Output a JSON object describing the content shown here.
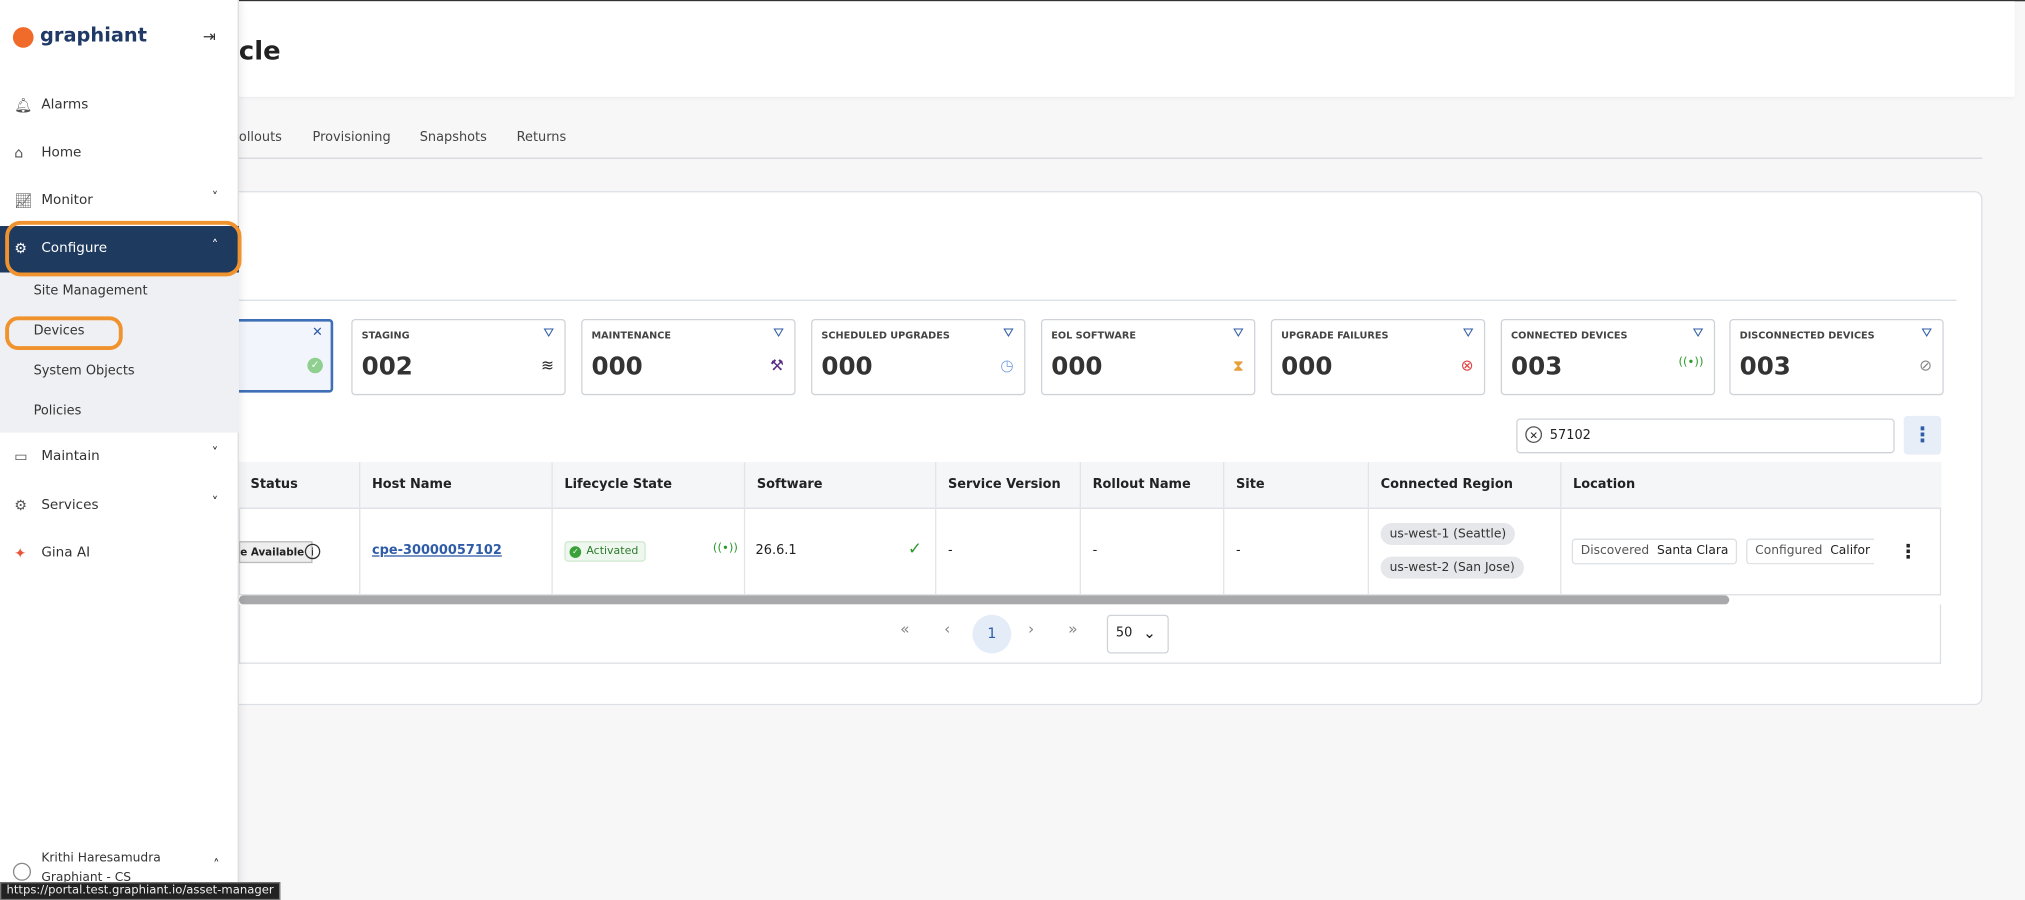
{
  "sidebar": {
    "logo": "graphiant",
    "nav": [
      "Alarms",
      "Home",
      "Monitor",
      "Configure"
    ],
    "configure_items": [
      "Site Management",
      "Devices",
      "System Objects",
      "Policies"
    ],
    "nav_more": [
      "Maintain",
      "Services",
      "Gina AI"
    ],
    "user": {
      "name": "Krithi Haresamudra",
      "org": "Graphiant - CS"
    }
  },
  "header": {
    "title": "cle"
  },
  "tabs": [
    "ollouts",
    "Provisioning",
    "Snapshots",
    "Returns"
  ],
  "cards": [
    {
      "label": "STAGING",
      "count": "002"
    },
    {
      "label": "MAINTENANCE",
      "count": "000"
    },
    {
      "label": "SCHEDULED UPGRADES",
      "count": "000"
    },
    {
      "label": "EOL SOFTWARE",
      "count": "000"
    },
    {
      "label": "UPGRADE FAILURES",
      "count": "000"
    },
    {
      "label": "CONNECTED DEVICES",
      "count": "003"
    },
    {
      "label": "DISCONNECTED DEVICES",
      "count": "003"
    }
  ],
  "search": "57102",
  "table": {
    "headers": [
      "Status",
      "Host Name",
      "Lifecycle State",
      "Software",
      "Service Version",
      "Rollout Name",
      "Site",
      "Connected Region",
      "Location"
    ],
    "row": {
      "status": "e Available",
      "host": "cpe-30000057102",
      "state": "Activated",
      "software": "26.6.1",
      "service_version": "-",
      "rollout": "-",
      "site": "-",
      "regions": [
        "us-west-1 (Seattle)",
        "us-west-2 (San Jose)"
      ],
      "location": [
        "Discovered",
        "Santa Clara",
        "Configured",
        "Califor"
      ]
    }
  },
  "pagination": {
    "page": "1",
    "page_size": "50"
  },
  "status_url": "https://portal.test.graphiant.io/asset-manager"
}
